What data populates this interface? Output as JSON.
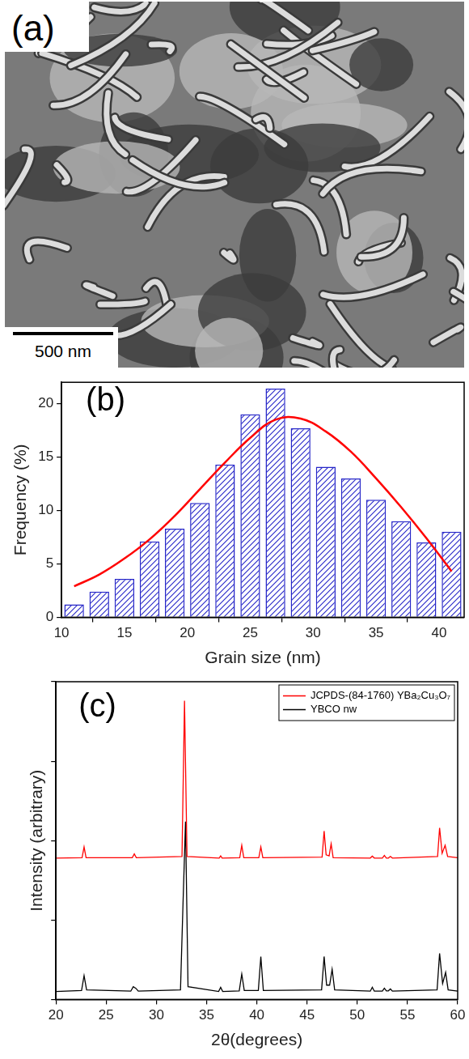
{
  "image_panel": {
    "panel_label": "(a)",
    "scale_bar": "500 nm"
  },
  "chart_data": [
    {
      "type": "histogram",
      "panel_label": "(b)",
      "xlabel": "Grain size (nm)",
      "ylabel": "Frequency (%)",
      "bins": [
        10,
        12,
        14,
        16,
        18,
        20,
        22,
        24,
        26,
        28,
        30,
        32,
        34,
        36,
        38,
        40,
        42
      ],
      "counts": [
        1.2,
        2.4,
        3.6,
        7.1,
        8.3,
        10.7,
        14.3,
        19.0,
        21.4,
        17.7,
        14.1,
        13.0,
        11.0,
        9.0,
        7.0,
        8.0
      ],
      "color": "#2626c8",
      "fit": {
        "type": "line",
        "color": "#ff0000",
        "x": [
          11,
          13,
          15,
          17,
          19,
          21,
          23,
          25,
          27,
          29,
          31,
          33,
          35,
          37,
          39,
          41
        ],
        "values": [
          2.9,
          4.0,
          5.5,
          7.3,
          9.5,
          12.0,
          14.5,
          16.8,
          18.5,
          18.6,
          17.4,
          15.5,
          13.0,
          10.3,
          7.4,
          4.3
        ]
      },
      "xlim": [
        10,
        42
      ],
      "xticks": [
        10,
        15,
        20,
        25,
        30,
        35,
        40
      ],
      "ylim": [
        0,
        22
      ],
      "yticks": [
        0,
        5,
        10,
        15,
        20
      ],
      "grid": false
    },
    {
      "type": "line",
      "panel_label": "(c)",
      "xlabel": "2θ(degrees)",
      "ylabel": "Intensity (arbitrary)",
      "xlim": [
        20,
        60
      ],
      "xticks": [
        20,
        25,
        30,
        35,
        40,
        45,
        50,
        55,
        60
      ],
      "ylim": [
        0,
        100
      ],
      "yticks": [
        0,
        25,
        50,
        75,
        100
      ],
      "tick_labels": "x",
      "grid": false,
      "legend": "upper right",
      "series": [
        {
          "name": "JCPDS-(84-1760) YBa₂Cu₃O₇",
          "color": "#ff0000",
          "x": [
            20,
            22.6,
            22.8,
            23.0,
            27.6,
            27.8,
            28.0,
            32.55,
            32.8,
            33.05,
            36.25,
            36.4,
            36.55,
            38.3,
            38.5,
            38.7,
            40.2,
            40.4,
            40.6,
            46.5,
            46.7,
            46.9,
            47.2,
            47.4,
            47.6,
            51.3,
            51.5,
            51.7,
            52.5,
            52.7,
            52.9,
            53.1,
            53.3,
            53.5,
            58.0,
            58.2,
            58.45,
            58.75,
            59.0,
            60
          ],
          "values": [
            44.5,
            44.6,
            48,
            44.6,
            44.6,
            45.8,
            44.6,
            45,
            94,
            45,
            44.5,
            45.2,
            44.5,
            44.6,
            48.5,
            44.6,
            44.6,
            48,
            44.6,
            44.8,
            53,
            45.5,
            45.2,
            49,
            44.6,
            44.5,
            45.1,
            44.5,
            44.5,
            45.3,
            44.5,
            44.5,
            45,
            44.5,
            45,
            54,
            46,
            48.5,
            45,
            44.6
          ]
        },
        {
          "name": "YBCO nw",
          "color": "#000000",
          "x": [
            20,
            22.55,
            22.8,
            23.05,
            27.45,
            27.7,
            27.95,
            28.2,
            32.4,
            32.65,
            32.9,
            33.15,
            36.2,
            36.4,
            36.6,
            38.25,
            38.5,
            38.75,
            40.15,
            40.4,
            40.65,
            46.45,
            46.7,
            46.95,
            47.25,
            47.5,
            47.75,
            51.3,
            51.5,
            51.7,
            52.5,
            52.7,
            52.9,
            53.1,
            53.3,
            53.5,
            57.95,
            58.2,
            58.5,
            58.8,
            59.05,
            60
          ],
          "values": [
            2.5,
            2.8,
            7.5,
            3.0,
            2.6,
            4.0,
            3.5,
            2.6,
            3.0,
            30,
            56,
            4.0,
            2.5,
            3.8,
            2.5,
            2.7,
            8.0,
            2.8,
            2.8,
            13.5,
            2.8,
            3.0,
            13.5,
            4.5,
            4.5,
            9.5,
            3.0,
            2.6,
            3.8,
            2.6,
            2.6,
            3.5,
            2.7,
            2.7,
            3.3,
            2.6,
            3.0,
            14.5,
            5.0,
            8.5,
            3.0,
            2.6
          ]
        }
      ]
    }
  ]
}
